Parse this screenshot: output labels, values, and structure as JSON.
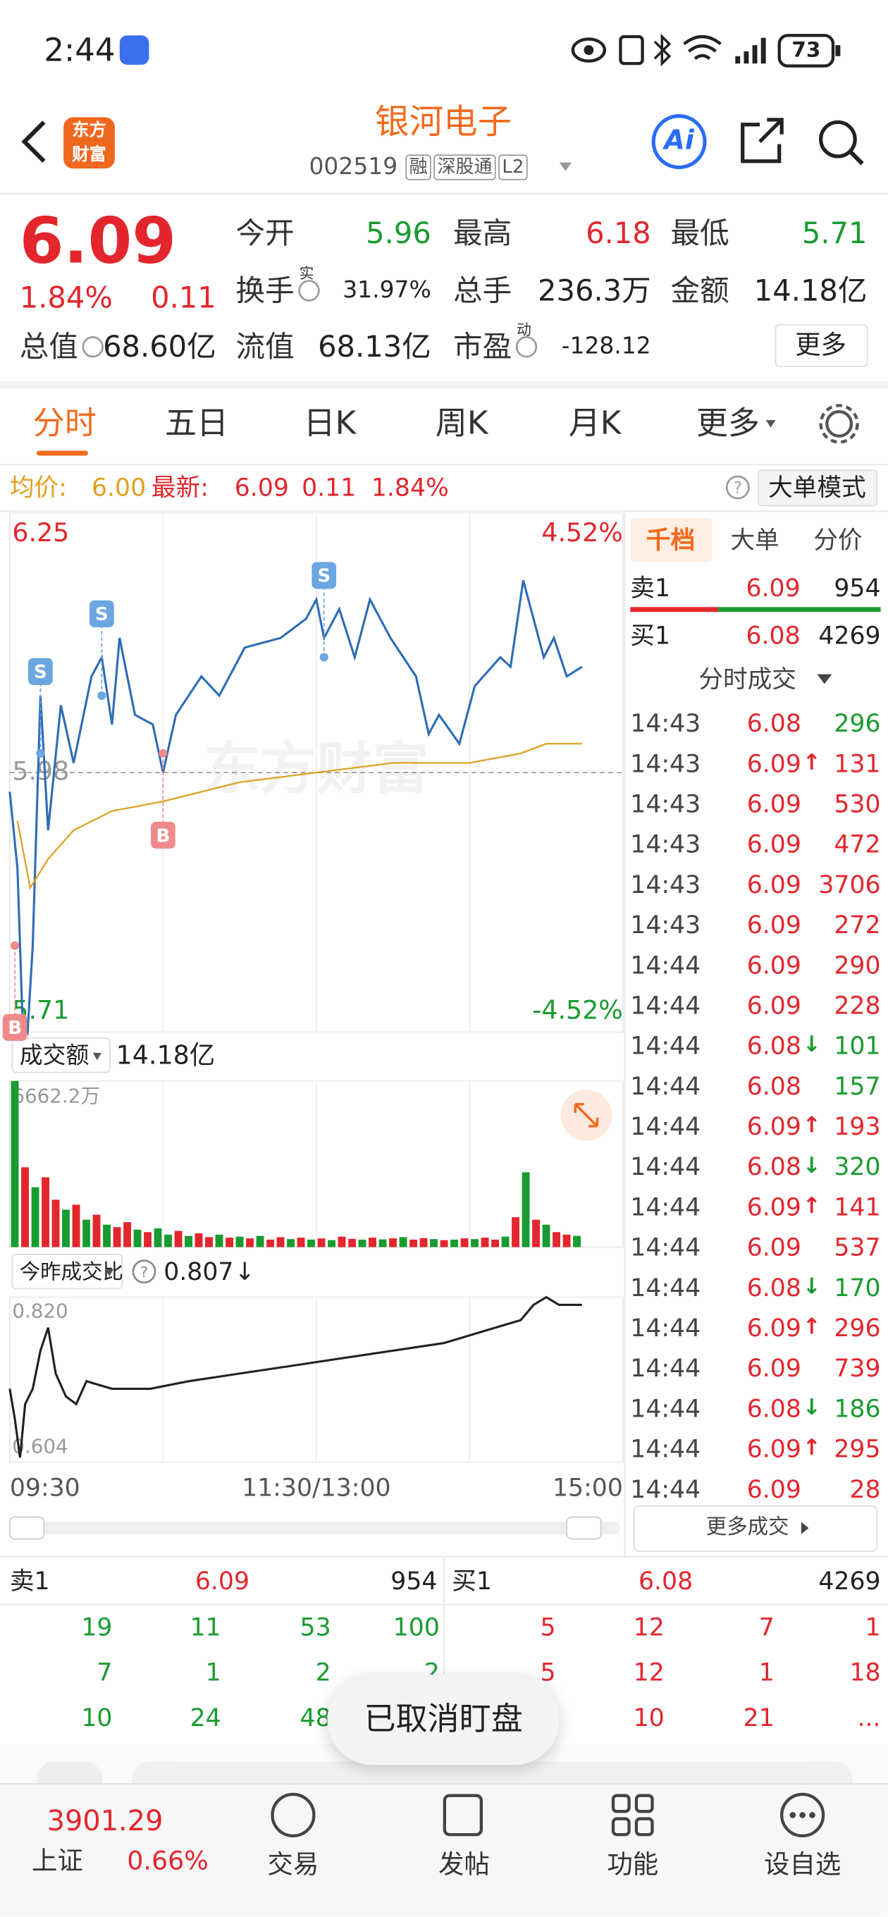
{
  "status_bar": {
    "time": "2:44",
    "battery": "73"
  },
  "header": {
    "logo": [
      "东方",
      "财富"
    ],
    "title": "银河电子",
    "code": "002519",
    "tags": [
      "融",
      "深股通",
      "L2"
    ],
    "ai": "Ai"
  },
  "quote": {
    "price": "6.09",
    "change_pct": "1.84%",
    "change": "0.11",
    "more": "更多",
    "fields": [
      {
        "label": "今开",
        "value": "5.96",
        "color": "#1a9b30"
      },
      {
        "label": "最高",
        "value": "6.18",
        "color": "#e3262d"
      },
      {
        "label": "最低",
        "value": "5.71",
        "color": "#1a9b30"
      },
      {
        "label": "换手",
        "sup": "实",
        "value": "31.97%"
      },
      {
        "label": "总手",
        "value": "236.3万"
      },
      {
        "label": "金额",
        "value": "14.18亿"
      },
      {
        "label": "总值",
        "value": "68.60亿"
      },
      {
        "label": "流值",
        "value": "68.13亿"
      },
      {
        "label": "市盈",
        "sup": "动",
        "value": "-128.12"
      }
    ]
  },
  "tabs": {
    "items": [
      "分时",
      "五日",
      "日K",
      "周K",
      "月K",
      "更多"
    ],
    "active": 0
  },
  "info_bar": {
    "avg_label": "均价:",
    "avg": "6.00",
    "latest_label": "最新:",
    "latest": "6.09",
    "change": "0.11",
    "change_pct": "1.84%",
    "mode": "大单模式"
  },
  "side_panel": {
    "tabs": [
      "千档",
      "大单",
      "分价"
    ],
    "active": 0,
    "ask": {
      "label": "卖1",
      "price": "6.09",
      "volume": "954"
    },
    "bid": {
      "label": "买1",
      "price": "6.08",
      "volume": "4269"
    },
    "trades_title": "分时成交",
    "trades": [
      {
        "time": "14:43",
        "price": "6.08",
        "volume": 296,
        "color": "#1a9b30"
      },
      {
        "time": "14:43",
        "price": "6.09",
        "arrow": "↑",
        "volume": 131,
        "color": "#e3262d"
      },
      {
        "time": "14:43",
        "price": "6.09",
        "volume": 530,
        "color": "#e3262d"
      },
      {
        "time": "14:43",
        "price": "6.09",
        "volume": 472,
        "color": "#e3262d"
      },
      {
        "time": "14:43",
        "price": "6.09",
        "volume": 3706,
        "color": "#e3262d"
      },
      {
        "time": "14:43",
        "price": "6.09",
        "volume": 272,
        "color": "#e3262d"
      },
      {
        "time": "14:44",
        "price": "6.09",
        "volume": 290,
        "color": "#e3262d"
      },
      {
        "time": "14:44",
        "price": "6.09",
        "volume": 228,
        "color": "#e3262d"
      },
      {
        "time": "14:44",
        "price": "6.08",
        "arrow": "↓",
        "volume": 101,
        "color": "#1a9b30"
      },
      {
        "time": "14:44",
        "price": "6.08",
        "volume": 157,
        "color": "#1a9b30"
      },
      {
        "time": "14:44",
        "price": "6.09",
        "arrow": "↑",
        "volume": 193,
        "color": "#e3262d"
      },
      {
        "time": "14:44",
        "price": "6.08",
        "arrow": "↓",
        "volume": 320,
        "color": "#1a9b30"
      },
      {
        "time": "14:44",
        "price": "6.09",
        "arrow": "↑",
        "volume": 141,
        "color": "#e3262d"
      },
      {
        "time": "14:44",
        "price": "6.09",
        "volume": 537,
        "color": "#e3262d"
      },
      {
        "time": "14:44",
        "price": "6.08",
        "arrow": "↓",
        "volume": 170,
        "color": "#1a9b30"
      },
      {
        "time": "14:44",
        "price": "6.09",
        "arrow": "↑",
        "volume": 296,
        "color": "#e3262d"
      },
      {
        "time": "14:44",
        "price": "6.09",
        "volume": 739,
        "color": "#e3262d"
      },
      {
        "time": "14:44",
        "price": "6.08",
        "arrow": "↓",
        "volume": 186,
        "color": "#1a9b30"
      },
      {
        "time": "14:44",
        "price": "6.09",
        "arrow": "↑",
        "volume": 295,
        "color": "#e3262d"
      },
      {
        "time": "14:44",
        "price": "6.09",
        "volume": 28,
        "color": "#e3262d"
      }
    ],
    "more": "更多成交"
  },
  "order_book": {
    "ask": {
      "label": "卖1",
      "price": "6.09",
      "volume": "954"
    },
    "bid": {
      "label": "买1",
      "price": "6.08",
      "volume": "4269"
    },
    "ask_rows": [
      [
        19,
        11,
        53,
        100
      ],
      [
        7,
        1,
        2,
        2
      ],
      [
        10,
        24,
        48,
        null
      ]
    ],
    "bid_rows": [
      [
        5,
        12,
        7,
        1
      ],
      [
        5,
        12,
        1,
        18
      ],
      [
        null,
        10,
        21,
        "..."
      ]
    ]
  },
  "toast": "已取消盯盘",
  "bottom_nav": {
    "index_value": "3901.29",
    "index_name": "上证",
    "index_pct": "0.66%",
    "items": [
      "交易",
      "发帖",
      "功能",
      "设自选"
    ]
  },
  "chart_data": [
    {
      "type": "line",
      "watermark": "东方财富",
      "xlim": [
        0,
        240
      ],
      "ylim": [
        5.71,
        6.25
      ],
      "yticks": [
        6.25,
        5.98,
        5.71
      ],
      "y2lim": [
        -4.52,
        4.52
      ],
      "y2ticks": [
        {
          "value": 4.52,
          "label": "4.52%"
        },
        {
          "value": -4.52,
          "label": "-4.52%"
        }
      ],
      "series": [
        {
          "color": "#2e6db4",
          "x": [
            0,
            3,
            5,
            7,
            9,
            12,
            15,
            20,
            25,
            32,
            36,
            40,
            43,
            49,
            56,
            60,
            65,
            75,
            82,
            92,
            106,
            116,
            120,
            123,
            129,
            135,
            141,
            149,
            159,
            164,
            168,
            176,
            182,
            192,
            196,
            201,
            204,
            209,
            213,
            218,
            224
          ],
          "values": [
            5.96,
            5.88,
            5.72,
            5.71,
            5.8,
            6.06,
            5.92,
            6.05,
            5.99,
            6.08,
            6.1,
            6.03,
            6.12,
            6.04,
            6.03,
            5.98,
            6.04,
            6.08,
            6.06,
            6.11,
            6.12,
            6.14,
            6.16,
            6.12,
            6.15,
            6.1,
            6.16,
            6.12,
            6.08,
            6.02,
            6.04,
            6.01,
            6.07,
            6.1,
            6.09,
            6.18,
            6.15,
            6.1,
            6.12,
            6.08,
            6.09
          ]
        },
        {
          "color": "#e0a020",
          "x": [
            3,
            8,
            15,
            25,
            40,
            60,
            90,
            120,
            150,
            180,
            200,
            210,
            224
          ],
          "values": [
            5.93,
            5.86,
            5.89,
            5.92,
            5.94,
            5.95,
            5.97,
            5.98,
            5.99,
            5.99,
            6.0,
            6.01,
            6.01
          ]
        }
      ],
      "markers": [
        {
          "label": "B",
          "x": 2,
          "y": 5.8,
          "color": "#f08a8a"
        },
        {
          "label": "S",
          "x": 12,
          "y": 6.0,
          "color": "#6aa6e0"
        },
        {
          "label": "S",
          "x": 36,
          "y": 6.06,
          "color": "#6aa6e0"
        },
        {
          "label": "B",
          "x": 60,
          "y": 6.0,
          "color": "#f08a8a"
        },
        {
          "label": "S",
          "x": 123,
          "y": 6.1,
          "color": "#6aa6e0"
        }
      ]
    },
    {
      "type": "bar",
      "title": "成交额",
      "total": "14.18亿",
      "xlim": [
        0,
        240
      ],
      "ylim": [
        0,
        6662.2
      ],
      "yticks": [
        {
          "value": 6662.2,
          "label": "6662.2万"
        }
      ],
      "x": [
        0,
        4,
        8,
        12,
        16,
        20,
        24,
        28,
        32,
        36,
        40,
        44,
        48,
        52,
        56,
        60,
        64,
        68,
        72,
        76,
        80,
        84,
        88,
        92,
        96,
        100,
        104,
        108,
        112,
        116,
        120,
        124,
        128,
        132,
        136,
        140,
        144,
        148,
        152,
        156,
        160,
        164,
        168,
        172,
        176,
        180,
        184,
        188,
        192,
        196,
        200,
        204,
        208,
        212,
        216,
        220
      ],
      "values": [
        6662.2,
        3200,
        2400,
        2800,
        1900,
        1500,
        1700,
        1100,
        1300,
        900,
        800,
        1000,
        700,
        600,
        750,
        500,
        650,
        450,
        550,
        400,
        500,
        380,
        420,
        350,
        450,
        300,
        400,
        320,
        380,
        300,
        350,
        280,
        420,
        330,
        300,
        380,
        310,
        350,
        400,
        300,
        360,
        320,
        280,
        300,
        350,
        320,
        380,
        300,
        420,
        1200,
        3000,
        1100,
        900,
        600,
        500,
        450
      ],
      "colors": [
        "#1a9b30",
        "#e3262d",
        "#1a9b30",
        "#e3262d",
        "#e3262d",
        "#1a9b30",
        "#e3262d",
        "#1a9b30",
        "#e3262d",
        "#1a9b30",
        "#e3262d",
        "#e3262d",
        "#1a9b30",
        "#e3262d",
        "#1a9b30",
        "#1a9b30",
        "#e3262d",
        "#1a9b30",
        "#e3262d",
        "#e3262d",
        "#1a9b30",
        "#e3262d",
        "#1a9b30",
        "#e3262d",
        "#1a9b30",
        "#e3262d",
        "#e3262d",
        "#1a9b30",
        "#e3262d",
        "#1a9b30",
        "#e3262d",
        "#1a9b30",
        "#e3262d",
        "#e3262d",
        "#1a9b30",
        "#e3262d",
        "#1a9b30",
        "#e3262d",
        "#1a9b30",
        "#e3262d",
        "#e3262d",
        "#1a9b30",
        "#e3262d",
        "#1a9b30",
        "#e3262d",
        "#1a9b30",
        "#e3262d",
        "#e3262d",
        "#1a9b30",
        "#e3262d",
        "#1a9b30",
        "#e3262d",
        "#1a9b30",
        "#e3262d",
        "#e3262d",
        "#1a9b30"
      ]
    },
    {
      "type": "line",
      "title": "今昨成交比",
      "current": "0.807",
      "direction": "↓",
      "xlim": [
        0,
        240
      ],
      "ylim": [
        0.604,
        0.82
      ],
      "yticks": [
        {
          "value": 0.82,
          "label": "0.820"
        },
        {
          "value": 0.604,
          "label": "0.604"
        }
      ],
      "xticks": [
        {
          "value": 0,
          "label": "09:30"
        },
        {
          "value": 120,
          "label": "11:30/13:00"
        },
        {
          "value": 240,
          "label": "15:00"
        }
      ],
      "series": [
        {
          "color": "#222222",
          "x": [
            0,
            2,
            4,
            6,
            9,
            12,
            15,
            18,
            22,
            26,
            30,
            40,
            55,
            70,
            90,
            110,
            130,
            150,
            170,
            190,
            200,
            205,
            210,
            215,
            220,
            224
          ],
          "values": [
            0.7,
            0.66,
            0.61,
            0.68,
            0.7,
            0.75,
            0.78,
            0.72,
            0.69,
            0.68,
            0.71,
            0.7,
            0.7,
            0.71,
            0.72,
            0.73,
            0.74,
            0.75,
            0.76,
            0.78,
            0.79,
            0.81,
            0.82,
            0.81,
            0.81,
            0.81
          ]
        }
      ]
    }
  ]
}
